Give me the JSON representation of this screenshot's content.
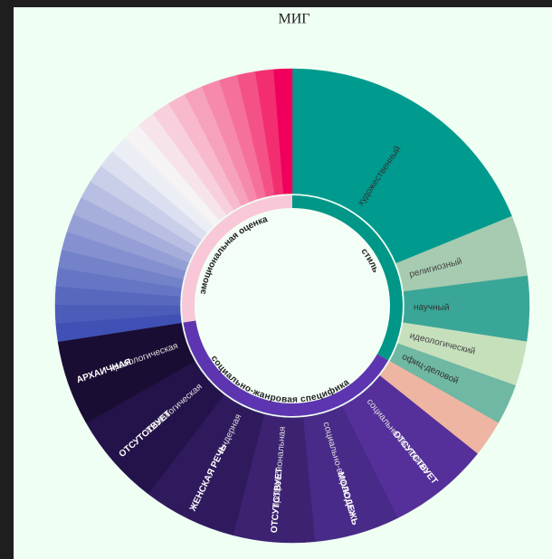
{
  "chart_data": {
    "type": "sunburst",
    "title": "МИГ",
    "groups": [
      {
        "name": "стиль",
        "color": "#009688",
        "segments": [
          {
            "name": "художественный",
            "color": "#009a8e",
            "value": 68
          },
          {
            "name": "религиозный",
            "color": "#a6cbb0",
            "value": 15
          },
          {
            "name": "научный",
            "color": "#3aa697",
            "value": 16
          },
          {
            "name": "идеологический",
            "color": "#c7e0bc",
            "value": 11
          },
          {
            "name": "офиц-деловой",
            "color": "#6fb8a3",
            "value": 10
          }
        ]
      },
      {
        "name": "социально-жанровая специфика",
        "color": "#5e35b1",
        "segments": [
          {
            "name": null,
            "color": "#efb5a3",
            "value": 9
          },
          {
            "name": "социально-сословная",
            "tag": "ОТСУТСТВУЕТ",
            "color": "#55309a",
            "value": 25
          },
          {
            "name": "социально-возрастная",
            "tag": "МОЛОДЕЖЬ",
            "color": "#482a88",
            "value": 21
          },
          {
            "name": "профессиональная",
            "tag": "ОТСУТСТВУЕТ",
            "color": "#3c2271",
            "value": 20
          },
          {
            "name": "гендерная",
            "tag": "ЖЕНСКАЯ РЕЧЬ",
            "color": "#301a5e",
            "value": 23
          },
          {
            "name": "космологическая",
            "tag": "ОТСУТСТВУЕТ",
            "color": "#24134a",
            "value": 23
          },
          {
            "name": "хронологическая",
            "tag": "АРХАИЧНАЯ",
            "color": "#1a0d33",
            "value": 21
          }
        ]
      },
      {
        "name": "эмоциональная оценка",
        "color": "#f8c8d8",
        "segments": [
          {
            "name": null,
            "color": "#3f51b5",
            "value": 4.5
          },
          {
            "name": null,
            "color": "#4b5cb9",
            "value": 4.5
          },
          {
            "name": null,
            "color": "#5868be",
            "value": 4.5
          },
          {
            "name": null,
            "color": "#6675c4",
            "value": 4.5
          },
          {
            "name": null,
            "color": "#7482c9",
            "value": 4.5
          },
          {
            "name": null,
            "color": "#8490cf",
            "value": 4.5
          },
          {
            "name": null,
            "color": "#959fd5",
            "value": 4.5
          },
          {
            "name": null,
            "color": "#a6aedb",
            "value": 4.5
          },
          {
            "name": null,
            "color": "#b8bfe2",
            "value": 4.5
          },
          {
            "name": null,
            "color": "#cacfe9",
            "value": 4.5
          },
          {
            "name": null,
            "color": "#dcdff0",
            "value": 4.5
          },
          {
            "name": null,
            "color": "#eceef5",
            "value": 4.5
          },
          {
            "name": null,
            "color": "#f5f3f4",
            "value": 4.5
          },
          {
            "name": null,
            "color": "#f7e3ea",
            "value": 4.5
          },
          {
            "name": null,
            "color": "#f8cfdc",
            "value": 4.5
          },
          {
            "name": null,
            "color": "#f8b9cd",
            "value": 4.5
          },
          {
            "name": null,
            "color": "#f7a2bd",
            "value": 4.5
          },
          {
            "name": null,
            "color": "#f68aac",
            "value": 4.5
          },
          {
            "name": null,
            "color": "#f5709a",
            "value": 4.5
          },
          {
            "name": null,
            "color": "#f45287",
            "value": 4.5
          },
          {
            "name": null,
            "color": "#f22e71",
            "value": 4.5
          },
          {
            "name": null,
            "color": "#f0005c",
            "value": 4.5
          }
        ]
      }
    ]
  }
}
